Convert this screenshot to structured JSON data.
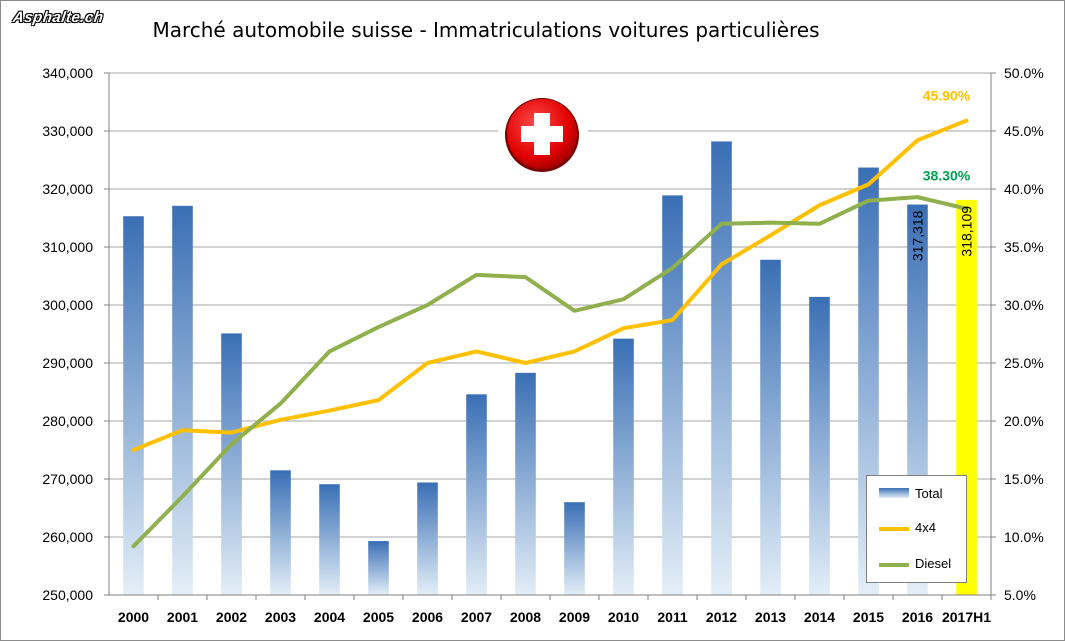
{
  "watermark": "Asphalte.ch",
  "chart_data": {
    "type": "bar",
    "title": "Marché automobile suisse - Immatriculations voitures particulières",
    "categories": [
      "2000",
      "2001",
      "2002",
      "2003",
      "2004",
      "2005",
      "2006",
      "2007",
      "2008",
      "2009",
      "2010",
      "2011",
      "2012",
      "2013",
      "2014",
      "2015",
      "2016",
      "2017H1"
    ],
    "series": [
      {
        "name": "Total",
        "type": "bar",
        "axis": "left",
        "values": [
          315300,
          317100,
          295100,
          271500,
          269100,
          259300,
          269400,
          284600,
          288300,
          266000,
          294200,
          318900,
          328200,
          307800,
          301400,
          323700,
          317318,
          318109
        ]
      },
      {
        "name": "4x4",
        "type": "line",
        "axis": "right",
        "color": "#ffc000",
        "values": [
          17.5,
          19.2,
          19.0,
          20.1,
          20.9,
          21.8,
          25.0,
          26.0,
          25.0,
          26.0,
          28.0,
          28.7,
          33.5,
          36.0,
          38.6,
          40.4,
          44.2,
          45.9
        ]
      },
      {
        "name": "Diesel",
        "type": "line",
        "axis": "right",
        "color": "#8fb04c",
        "values": [
          9.2,
          13.5,
          18.0,
          21.5,
          26.0,
          28.1,
          30.0,
          32.6,
          32.4,
          29.5,
          30.5,
          33.2,
          37.0,
          37.1,
          37.0,
          39.0,
          39.3,
          38.3
        ]
      }
    ],
    "ylim": [
      250000,
      340000
    ],
    "ylim_right": [
      5.0,
      50.0
    ],
    "yticks": [
      "250,000",
      "260,000",
      "270,000",
      "280,000",
      "290,000",
      "300,000",
      "310,000",
      "320,000",
      "330,000",
      "340,000"
    ],
    "yticks_right": [
      "5.0%",
      "10.0%",
      "15.0%",
      "20.0%",
      "25.0%",
      "30.0%",
      "35.0%",
      "40.0%",
      "45.0%",
      "50.0%"
    ],
    "annotations": [
      {
        "text": "45.90%",
        "series": "4x4",
        "color": "#ffc000"
      },
      {
        "text": "38.30%",
        "series": "Diesel",
        "color": "#00a050"
      },
      {
        "text": "317,318",
        "category": "2016"
      },
      {
        "text": "318,109",
        "category": "2017H1"
      }
    ],
    "highlight": {
      "category": "2017H1",
      "color": "#ffff00"
    },
    "legend": {
      "position": "bottom-right",
      "entries": [
        "Total",
        "4x4",
        "Diesel"
      ]
    },
    "grid": true
  }
}
